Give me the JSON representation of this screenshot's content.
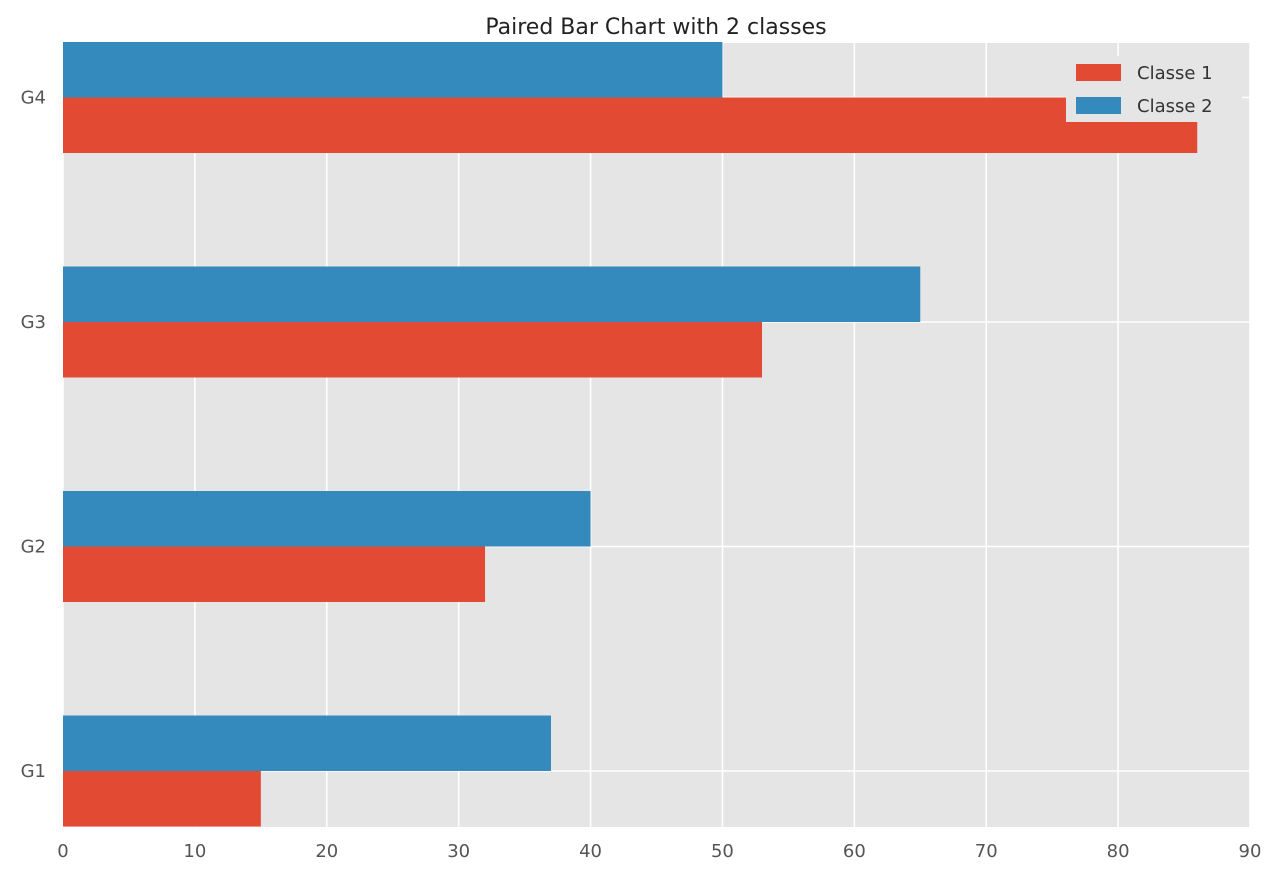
{
  "chart_data": {
    "type": "bar",
    "orientation": "horizontal",
    "title": "Paired Bar Chart with 2 classes",
    "xlabel": "",
    "ylabel": "",
    "categories": [
      "G1",
      "G2",
      "G3",
      "G4"
    ],
    "series": [
      {
        "name": "Classe 1",
        "color": "#E24A33",
        "values": [
          15,
          32,
          53,
          86
        ]
      },
      {
        "name": "Classe 2",
        "color": "#348ABD",
        "values": [
          37,
          40,
          65,
          50
        ]
      }
    ],
    "xlim": [
      0,
      90
    ],
    "xticks": [
      0,
      10,
      20,
      30,
      40,
      50,
      60,
      70,
      80,
      90
    ],
    "grid": true,
    "legend_position": "top-right",
    "background_color": "#E5E5E5"
  }
}
